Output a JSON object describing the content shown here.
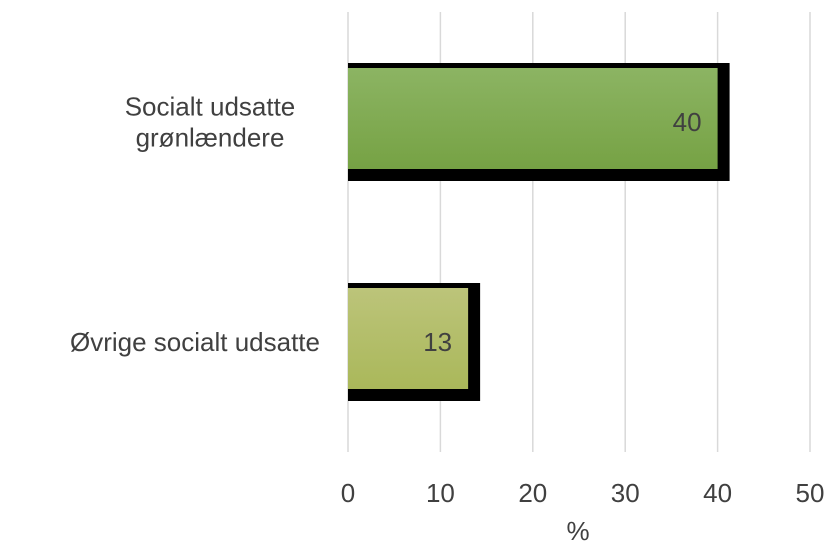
{
  "chart_data": {
    "type": "bar",
    "orientation": "horizontal",
    "categories": [
      [
        "Socialt udsatte",
        "grønlændere"
      ],
      [
        "Øvrige socialt udsatte"
      ]
    ],
    "series": [
      {
        "values": [
          40,
          13
        ]
      }
    ],
    "data_labels": [
      "40",
      "13"
    ],
    "xlabel": "%",
    "xlim": [
      0,
      50
    ],
    "xticks": [
      0,
      10,
      20,
      30,
      40,
      50
    ],
    "grid": true,
    "colors": {
      "bars": [
        "#76a244",
        "#aab85a"
      ],
      "bars_light": [
        "#8cb463",
        "#bcc47a"
      ],
      "shadow": "#000000",
      "grid": "#d9d9d9",
      "text": "#404040"
    }
  }
}
